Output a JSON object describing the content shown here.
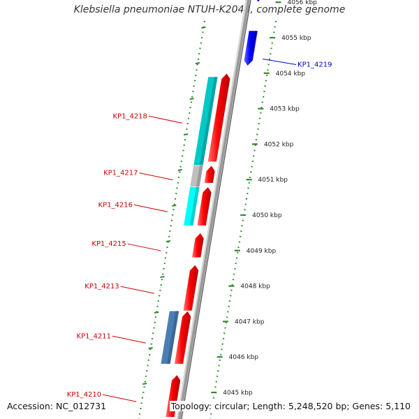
{
  "title": "Klebsiella pneumoniae NTUH-K2044, complete genome",
  "footer": {
    "accession": "Accession: NC_012731",
    "summary": "Topology: circular; Length: 5,248,520 bp; Genes: 5,110"
  },
  "colors": {
    "forward_strand": "#ff0000",
    "reverse_strand": "#0000ff",
    "label_red": "#cc0000",
    "label_blue": "#0000cc",
    "cyan": "#00c8c8",
    "cyan_light": "#00ffff",
    "gray": "#bfbfbf",
    "steelblue": "#4a7fb5",
    "ruler_green": "#2e8b2e",
    "backbone": "#9a9a9a"
  },
  "ticks": [
    {
      "kbp": 4056,
      "label": "4056 kbp"
    },
    {
      "kbp": 4055,
      "label": "4055 kbp"
    },
    {
      "kbp": 4054,
      "label": "4054 kbp"
    },
    {
      "kbp": 4053,
      "label": "4053 kbp"
    },
    {
      "kbp": 4052,
      "label": "4052 kbp"
    },
    {
      "kbp": 4051,
      "label": "4051 kbp"
    },
    {
      "kbp": 4050,
      "label": "4050 kbp"
    },
    {
      "kbp": 4049,
      "label": "4049 kbp"
    },
    {
      "kbp": 4048,
      "label": "4048 kbp"
    },
    {
      "kbp": 4047,
      "label": "4047 kbp"
    },
    {
      "kbp": 4046,
      "label": "4046 kbp"
    },
    {
      "kbp": 4045,
      "label": "4045 kbp"
    }
  ],
  "genes": [
    {
      "id": "kp1-4219",
      "label": "KP1_4219",
      "strand": "reverse",
      "start_kbp": 4055.2,
      "end_kbp": 4054.2,
      "color": "#0000ff",
      "label_side": "right"
    },
    {
      "id": "kp1-4219b",
      "label": "",
      "strand": "reverse",
      "start_kbp": 4056.3,
      "end_kbp": 4056.0,
      "color": "#0000ff",
      "label_side": "none"
    },
    {
      "id": "kp1-4218",
      "label": "KP1_4218",
      "strand": "forward",
      "start_kbp": 4051.5,
      "end_kbp": 4054.0,
      "color": "#ff0000",
      "label_side": "left"
    },
    {
      "id": "kp1-4217",
      "label": "KP1_4217",
      "strand": "forward",
      "start_kbp": 4050.9,
      "end_kbp": 4051.4,
      "color": "#ff0000",
      "label_side": "left"
    },
    {
      "id": "kp1-4216",
      "label": "KP1_4216",
      "strand": "forward",
      "start_kbp": 4049.7,
      "end_kbp": 4050.8,
      "color": "#ff0000",
      "label_side": "left"
    },
    {
      "id": "kp1-4215",
      "label": "KP1_4215",
      "strand": "forward",
      "start_kbp": 4048.8,
      "end_kbp": 4049.5,
      "color": "#ff0000",
      "label_side": "left"
    },
    {
      "id": "kp1-4213",
      "label": "KP1_4213",
      "strand": "forward",
      "start_kbp": 4047.3,
      "end_kbp": 4048.6,
      "color": "#ff0000",
      "label_side": "left"
    },
    {
      "id": "kp1-4211",
      "label": "KP1_4211",
      "strand": "forward",
      "start_kbp": 4045.8,
      "end_kbp": 4047.3,
      "color": "#ff0000",
      "label_side": "left"
    },
    {
      "id": "kp1-4210",
      "label": "KP1_4210",
      "strand": "forward",
      "start_kbp": 4044.3,
      "end_kbp": 4045.5,
      "color": "#ff0000",
      "label_side": "left"
    }
  ],
  "features": [
    {
      "id": "cyan-a",
      "start_kbp": 4051.4,
      "end_kbp": 4053.9,
      "color": "#00c8c8"
    },
    {
      "id": "gray-a",
      "start_kbp": 4050.8,
      "end_kbp": 4051.4,
      "color": "#bfbfbf"
    },
    {
      "id": "cyan-b",
      "start_kbp": 4049.7,
      "end_kbp": 4050.8,
      "color": "#00ffff"
    },
    {
      "id": "steelblue-a",
      "start_kbp": 4045.8,
      "end_kbp": 4047.3,
      "color": "#4a7fb5"
    }
  ]
}
